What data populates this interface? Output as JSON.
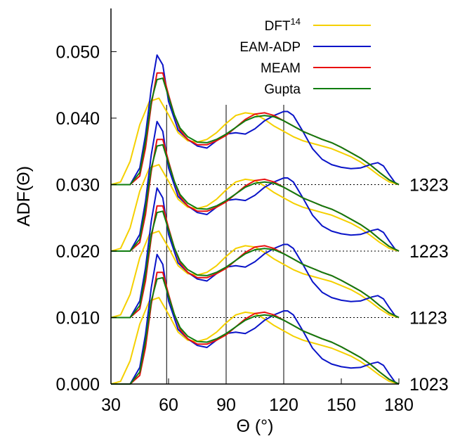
{
  "chart_data": {
    "type": "line",
    "xlabel": "Θ (°)",
    "ylabel": "ADF(Θ)",
    "xlim": [
      30,
      180
    ],
    "ylim": [
      0,
      0.0565
    ],
    "xticks": [
      "30",
      "60",
      "90",
      "120",
      "150",
      "180"
    ],
    "yticks": [
      "0.000",
      "0.010",
      "0.020",
      "0.030",
      "0.040",
      "0.050"
    ],
    "offset_step": 0.01,
    "baselines": [
      0.01,
      0.02,
      0.03
    ],
    "vertical_lines": [
      59,
      90,
      120
    ],
    "temperatures": [
      "1023",
      "1123",
      "1223",
      "1323"
    ],
    "legend": {
      "position": "top-right",
      "entries": [
        {
          "label": "DFT",
          "sup": "14",
          "color": "#f5d000"
        },
        {
          "label": "EAM-ADP",
          "color": "#0a14c8"
        },
        {
          "label": "MEAM",
          "color": "#e81010"
        },
        {
          "label": "Gupta",
          "color": "#0f7d0f"
        }
      ]
    },
    "series": [
      {
        "name": "DFT",
        "color": "#f5d000",
        "x": [
          30,
          35,
          40,
          45,
          50,
          55,
          60,
          65,
          70,
          75,
          80,
          85,
          90,
          95,
          100,
          105,
          110,
          115,
          120,
          125,
          130,
          135,
          140,
          145,
          150,
          155,
          160,
          165,
          170,
          175,
          180
        ],
        "y": [
          0.0,
          0.0004,
          0.0035,
          0.009,
          0.0125,
          0.013,
          0.0105,
          0.0078,
          0.0066,
          0.0064,
          0.0068,
          0.0078,
          0.0092,
          0.0104,
          0.0108,
          0.0106,
          0.0098,
          0.0088,
          0.008,
          0.0072,
          0.0066,
          0.0062,
          0.0058,
          0.0054,
          0.0048,
          0.0042,
          0.0034,
          0.0024,
          0.0013,
          0.0004,
          0.0
        ]
      },
      {
        "name": "EAM-ADP",
        "color": "#0a14c8",
        "x": [
          30,
          40,
          45,
          48,
          51,
          54,
          57,
          60,
          65,
          70,
          75,
          80,
          85,
          90,
          95,
          100,
          105,
          110,
          115,
          120,
          122,
          125,
          130,
          135,
          140,
          145,
          150,
          155,
          160,
          163,
          166,
          169,
          172,
          175,
          178,
          180
        ],
        "y": [
          0.0,
          0.0,
          0.0025,
          0.0075,
          0.0145,
          0.0195,
          0.018,
          0.0125,
          0.0082,
          0.0068,
          0.0058,
          0.0055,
          0.0066,
          0.0076,
          0.0078,
          0.0076,
          0.0084,
          0.0096,
          0.0104,
          0.011,
          0.011,
          0.0104,
          0.008,
          0.0054,
          0.0038,
          0.003,
          0.0026,
          0.0024,
          0.0025,
          0.0028,
          0.0031,
          0.0033,
          0.0028,
          0.0015,
          0.0003,
          0.0
        ]
      },
      {
        "name": "MEAM",
        "color": "#e81010",
        "x": [
          30,
          40,
          45,
          48,
          51,
          54,
          57,
          60,
          63,
          66,
          70,
          75,
          80,
          85,
          90,
          95,
          100,
          105,
          110,
          115,
          120,
          125,
          130,
          135,
          140,
          145,
          150,
          155,
          160,
          165,
          170,
          175,
          180
        ],
        "y": [
          0.0,
          0.0,
          0.0013,
          0.0055,
          0.012,
          0.0168,
          0.0168,
          0.0135,
          0.0105,
          0.0082,
          0.0068,
          0.006,
          0.006,
          0.0066,
          0.0074,
          0.0086,
          0.0098,
          0.0106,
          0.0108,
          0.0104,
          0.0096,
          0.0088,
          0.008,
          0.0074,
          0.0068,
          0.0063,
          0.0056,
          0.0048,
          0.004,
          0.003,
          0.0018,
          0.0007,
          0.0
        ]
      },
      {
        "name": "Gupta",
        "color": "#0f7d0f",
        "x": [
          30,
          40,
          45,
          48,
          51,
          54,
          57,
          60,
          63,
          66,
          70,
          75,
          80,
          85,
          90,
          95,
          100,
          105,
          110,
          115,
          120,
          125,
          130,
          135,
          140,
          145,
          150,
          155,
          160,
          165,
          170,
          175,
          180
        ],
        "y": [
          0.0,
          0.0,
          0.0018,
          0.0065,
          0.0125,
          0.0158,
          0.016,
          0.0132,
          0.0105,
          0.0085,
          0.0072,
          0.0064,
          0.0063,
          0.0068,
          0.0076,
          0.0086,
          0.0096,
          0.0102,
          0.0104,
          0.0102,
          0.0096,
          0.0088,
          0.008,
          0.0074,
          0.0068,
          0.0063,
          0.0056,
          0.0048,
          0.004,
          0.003,
          0.0018,
          0.0007,
          0.0
        ]
      }
    ]
  }
}
